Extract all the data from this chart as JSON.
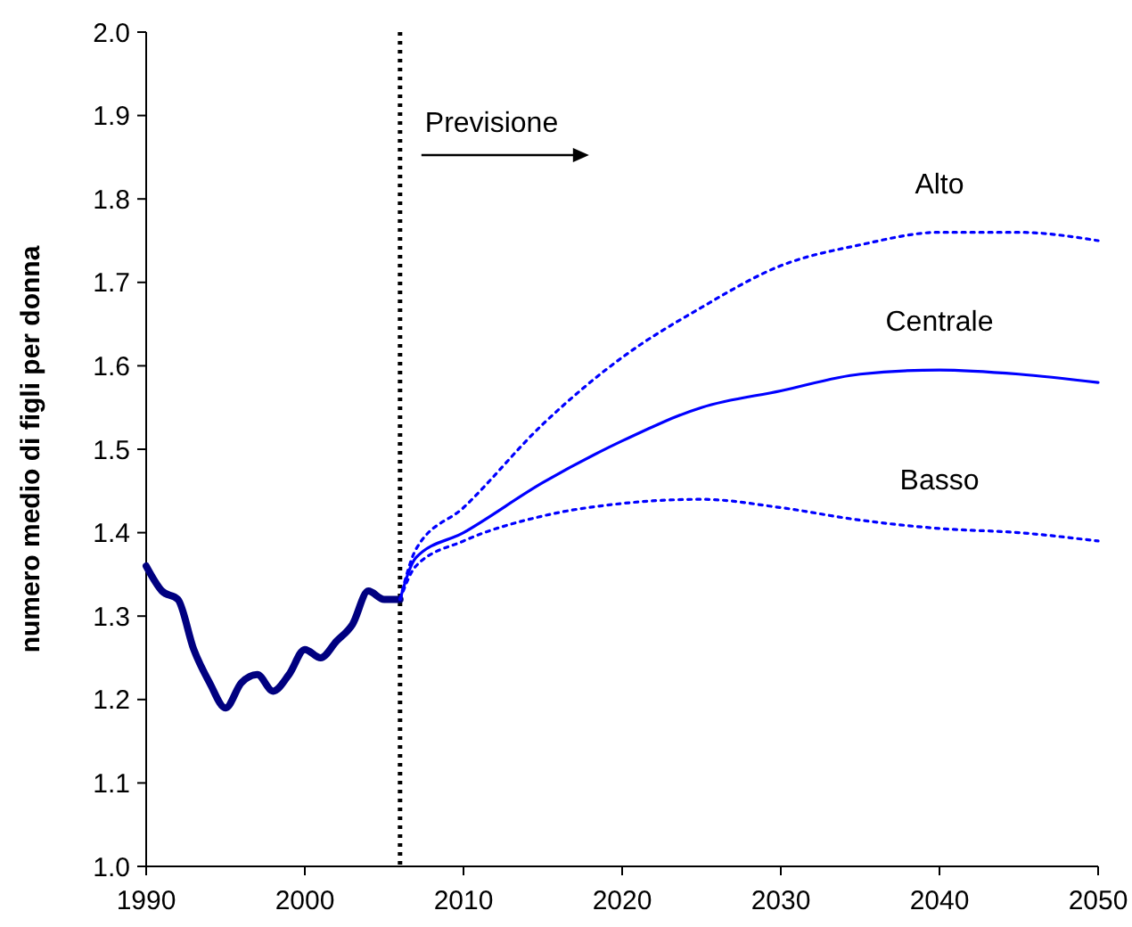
{
  "chart_data": {
    "type": "line",
    "ylabel": "numero medio di figli per donna",
    "xlim": [
      1990,
      2050
    ],
    "xticks": [
      1990,
      2000,
      2010,
      2020,
      2030,
      2040,
      2050
    ],
    "ylim": [
      1.0,
      2.0
    ],
    "yticks": [
      {
        "value": 1.0,
        "label": "1.0"
      },
      {
        "value": 1.1,
        "label": "1.1"
      },
      {
        "value": 1.2,
        "label": "1.2"
      },
      {
        "value": 1.3,
        "label": "1.3"
      },
      {
        "value": 1.4,
        "label": "1.4"
      },
      {
        "value": 1.5,
        "label": "1.5"
      },
      {
        "value": 1.6,
        "label": "1.6"
      },
      {
        "value": 1.7,
        "label": "1.7"
      },
      {
        "value": 1.8,
        "label": "1.8"
      },
      {
        "value": 1.9,
        "label": "1.9"
      },
      {
        "value": 2.0,
        "label": "2.0"
      }
    ],
    "grid": false,
    "series": [
      {
        "color": "#000080",
        "line_style": "solid",
        "x": [
          1990,
          1991,
          1992,
          1993,
          1994,
          1995,
          1996,
          1997,
          1998,
          1999,
          2000,
          2001,
          2002,
          2003,
          2004,
          2005,
          2006
        ],
        "values": [
          1.36,
          1.33,
          1.32,
          1.26,
          1.22,
          1.19,
          1.22,
          1.23,
          1.21,
          1.23,
          1.26,
          1.25,
          1.27,
          1.29,
          1.33,
          1.32,
          1.32
        ]
      },
      {
        "name": "Alto",
        "color": "#0000ff",
        "line_style": "dotted",
        "x": [
          2006,
          2007,
          2010,
          2015,
          2020,
          2025,
          2030,
          2035,
          2040,
          2045,
          2050
        ],
        "values": [
          1.32,
          1.38,
          1.43,
          1.53,
          1.61,
          1.67,
          1.72,
          1.745,
          1.76,
          1.76,
          1.75
        ]
      },
      {
        "name": "Centrale",
        "color": "#0000ff",
        "line_style": "solid",
        "x": [
          2006,
          2007,
          2010,
          2015,
          2020,
          2025,
          2030,
          2035,
          2040,
          2045,
          2050
        ],
        "values": [
          1.32,
          1.37,
          1.4,
          1.46,
          1.51,
          1.55,
          1.57,
          1.59,
          1.595,
          1.59,
          1.58
        ]
      },
      {
        "name": "Basso",
        "color": "#0000ff",
        "line_style": "dotted",
        "x": [
          2006,
          2007,
          2010,
          2015,
          2020,
          2025,
          2030,
          2035,
          2040,
          2045,
          2050
        ],
        "values": [
          1.32,
          1.36,
          1.39,
          1.42,
          1.435,
          1.44,
          1.43,
          1.415,
          1.405,
          1.4,
          1.39
        ]
      }
    ],
    "ref_lines": [
      {
        "axis": "x",
        "value": 2006,
        "color": "#000000",
        "line_style": "dotted"
      }
    ],
    "annotations": [
      "Previsione"
    ]
  }
}
